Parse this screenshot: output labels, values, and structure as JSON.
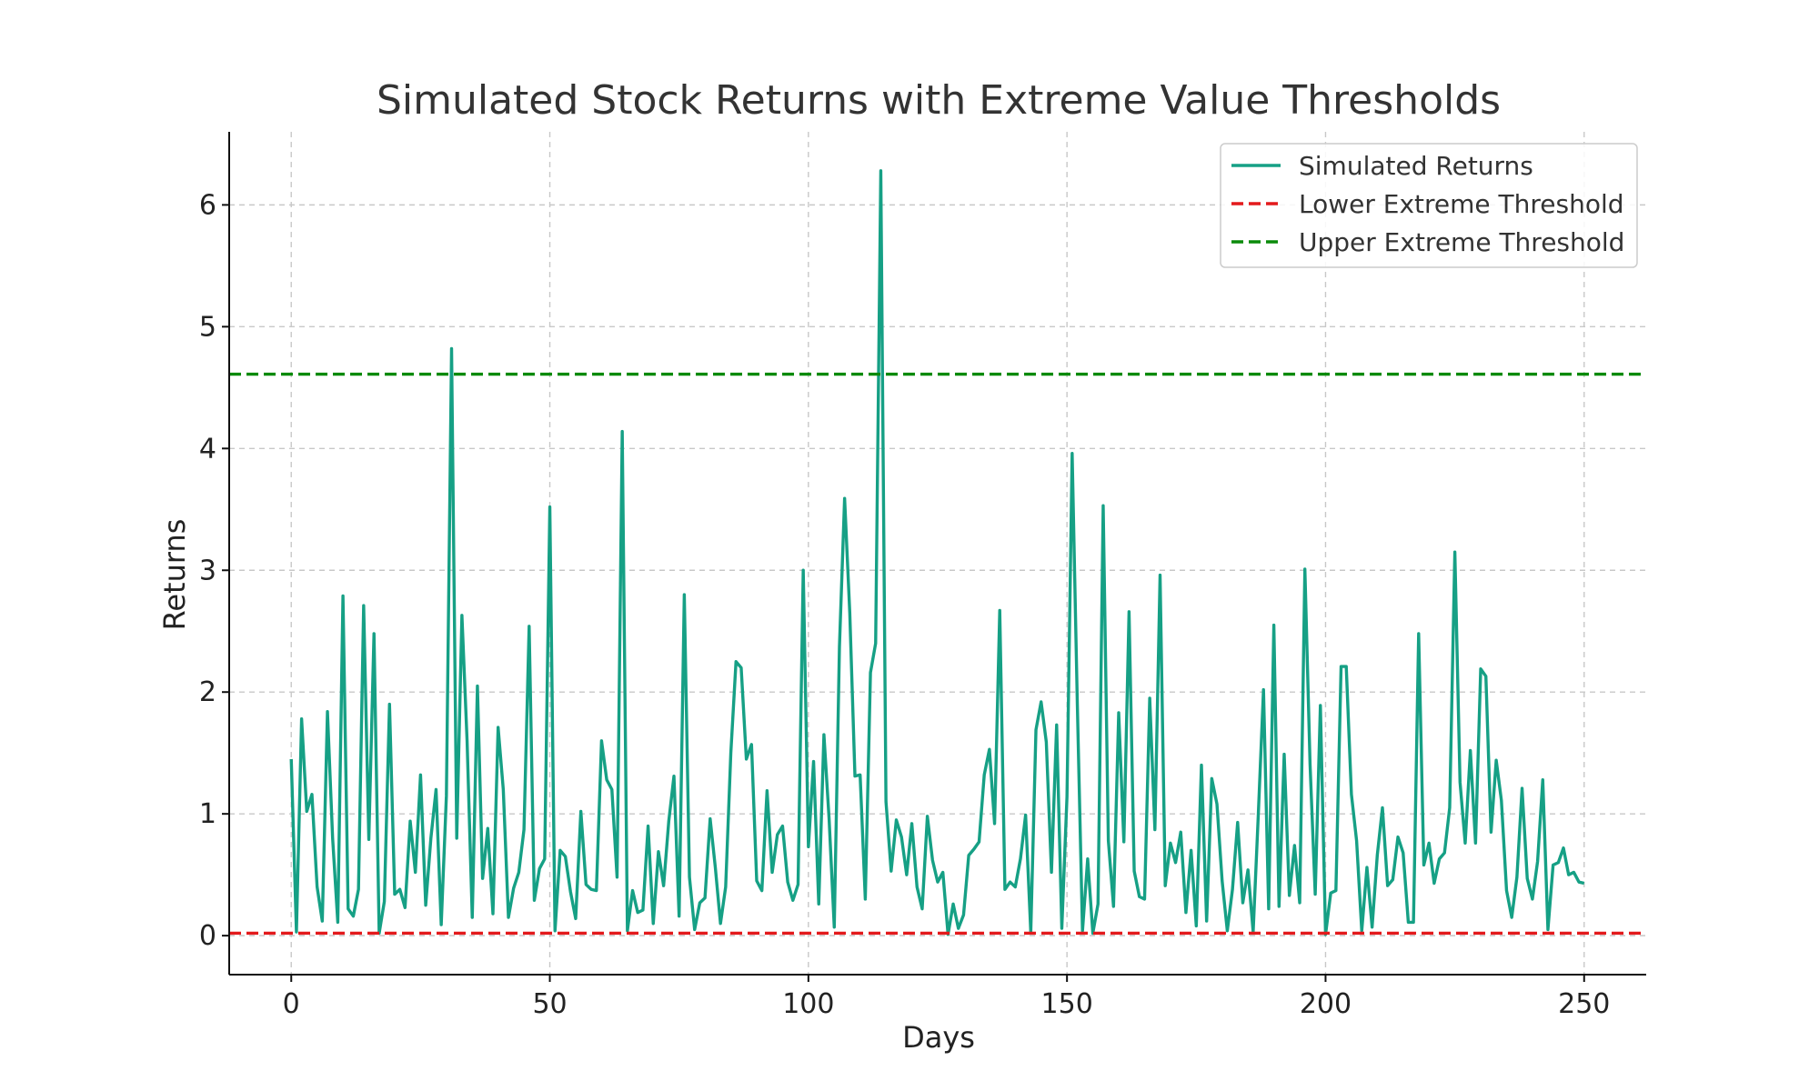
{
  "chart_data": {
    "type": "line",
    "title": "Simulated Stock Returns with Extreme Value Thresholds",
    "xlabel": "Days",
    "ylabel": "Returns",
    "xlim": [
      -12,
      262
    ],
    "ylim": [
      -0.32,
      6.6
    ],
    "x_ticks": [
      0,
      50,
      100,
      150,
      200,
      250
    ],
    "y_ticks": [
      0,
      1,
      2,
      3,
      4,
      5,
      6
    ],
    "grid": true,
    "legend_position": "top-right",
    "series": [
      {
        "name": "Simulated Returns",
        "color": "#16a085",
        "style": "solid",
        "x_start": 0,
        "values": [
          1.45,
          0.03,
          1.78,
          1.02,
          1.16,
          0.4,
          0.12,
          1.84,
          0.8,
          0.11,
          2.79,
          0.22,
          0.16,
          0.38,
          2.71,
          0.79,
          2.48,
          0.02,
          0.28,
          1.9,
          0.34,
          0.38,
          0.23,
          0.94,
          0.52,
          1.32,
          0.25,
          0.8,
          1.2,
          0.09,
          1.15,
          4.82,
          0.8,
          2.63,
          1.6,
          0.15,
          2.05,
          0.47,
          0.88,
          0.18,
          1.71,
          1.2,
          0.15,
          0.39,
          0.52,
          0.87,
          2.54,
          0.29,
          0.55,
          0.63,
          3.52,
          0.04,
          0.7,
          0.65,
          0.36,
          0.14,
          1.02,
          0.42,
          0.38,
          0.37,
          1.6,
          1.28,
          1.2,
          0.48,
          4.14,
          0.04,
          0.37,
          0.19,
          0.21,
          0.9,
          0.1,
          0.69,
          0.41,
          0.94,
          1.31,
          0.16,
          2.8,
          0.48,
          0.05,
          0.27,
          0.31,
          0.96,
          0.56,
          0.1,
          0.4,
          1.5,
          2.25,
          2.2,
          1.45,
          1.57,
          0.45,
          0.37,
          1.19,
          0.52,
          0.83,
          0.9,
          0.44,
          0.29,
          0.42,
          3.0,
          0.73,
          1.43,
          0.26,
          1.65,
          0.96,
          0.07,
          2.37,
          3.59,
          2.65,
          1.31,
          1.32,
          0.3,
          2.16,
          2.4,
          6.28,
          1.1,
          0.53,
          0.95,
          0.81,
          0.5,
          0.92,
          0.4,
          0.22,
          0.98,
          0.62,
          0.44,
          0.52,
          0.01,
          0.26,
          0.06,
          0.17,
          0.66,
          0.71,
          0.77,
          1.32,
          1.53,
          0.92,
          2.67,
          0.38,
          0.44,
          0.4,
          0.63,
          0.99,
          0.03,
          1.69,
          1.92,
          1.59,
          0.52,
          1.73,
          0.06,
          1.14,
          3.96,
          1.9,
          0.04,
          0.63,
          0.02,
          0.26,
          3.53,
          0.78,
          0.24,
          1.83,
          0.77,
          2.66,
          0.53,
          0.32,
          0.3,
          1.95,
          0.87,
          2.96,
          0.41,
          0.76,
          0.6,
          0.85,
          0.19,
          0.7,
          0.08,
          1.4,
          0.12,
          1.29,
          1.08,
          0.45,
          0.04,
          0.38,
          0.93,
          0.27,
          0.54,
          0.03,
          1.0,
          2.02,
          0.22,
          2.55,
          0.24,
          1.49,
          0.33,
          0.74,
          0.27,
          3.01,
          1.41,
          0.34,
          1.89,
          0.01,
          0.35,
          0.37,
          2.21,
          2.21,
          1.16,
          0.78,
          0.04,
          0.56,
          0.07,
          0.66,
          1.05,
          0.41,
          0.46,
          0.81,
          0.68,
          0.11,
          0.11,
          2.48,
          0.58,
          0.76,
          0.43,
          0.63,
          0.68,
          1.05,
          3.15,
          1.26,
          0.76,
          1.52,
          0.76,
          2.19,
          2.13,
          0.85,
          1.44,
          1.11,
          0.37,
          0.15,
          0.48,
          1.21,
          0.47,
          0.3,
          0.61,
          1.28,
          0.05,
          0.58,
          0.6,
          0.72,
          0.5,
          0.52,
          0.44,
          0.43
        ]
      },
      {
        "name": "Lower Extreme Threshold",
        "color": "#e31a1c",
        "style": "dashed",
        "y": 0.02
      },
      {
        "name": "Upper Extreme Threshold",
        "color": "#0a8a0a",
        "style": "dashed",
        "y": 4.61
      }
    ]
  }
}
